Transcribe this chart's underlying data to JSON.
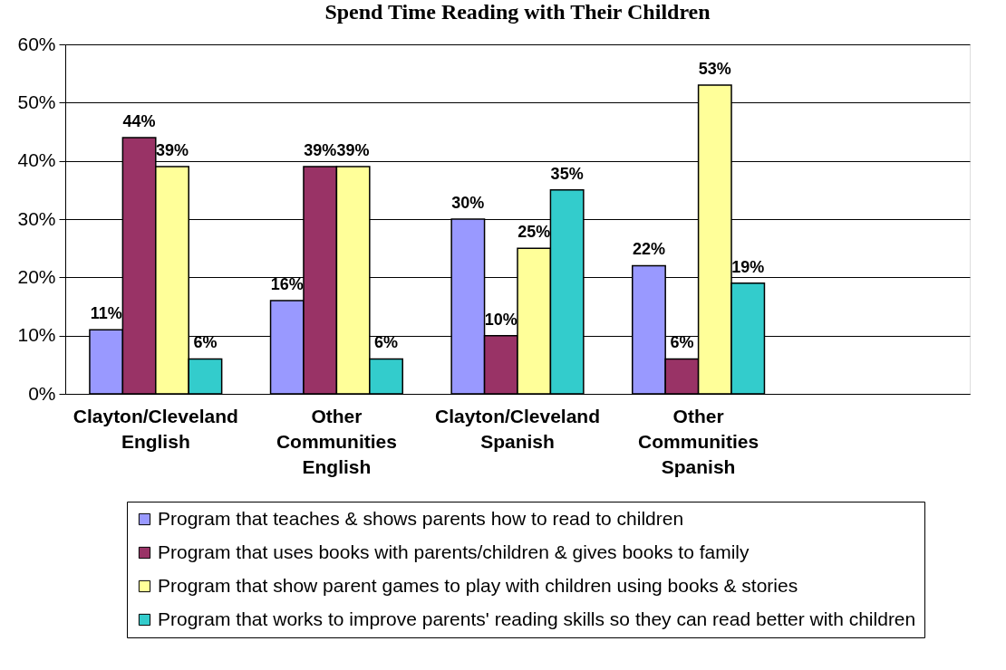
{
  "chart_data": {
    "type": "bar",
    "title": "Spend Time Reading with Their Children",
    "categories": [
      "Clayton/Cleveland English",
      "Other Communities English",
      "Clayton/Cleveland Spanish",
      "Other Communities Spanish",
      null
    ],
    "series": [
      {
        "name": "Program that teaches & shows parents how to read to children",
        "color": "#9999ff",
        "values": [
          11,
          16,
          30,
          22,
          null
        ],
        "value_labels": [
          "11%",
          "16%",
          "30%",
          "22%",
          null
        ]
      },
      {
        "name": "Program that uses books with parents/children & gives books to family",
        "color": "#993366",
        "values": [
          44,
          39,
          10,
          6,
          null
        ],
        "value_labels": [
          "44%",
          "39%",
          "10%",
          "6%",
          null
        ]
      },
      {
        "name": "Program that show parent games to play with children using books & stories",
        "color": "#ffff99",
        "values": [
          39,
          39,
          25,
          53,
          null
        ],
        "value_labels": [
          "39%",
          "39%",
          "25%",
          "53%",
          null
        ]
      },
      {
        "name": "Program that works to improve parents' reading skills so they can read better with children",
        "color": "#33cccc",
        "values": [
          6,
          6,
          35,
          19,
          null
        ],
        "value_labels": [
          "6%",
          "6%",
          "35%",
          "19%",
          null
        ]
      }
    ],
    "ylim": [
      0,
      60
    ],
    "yticks": [
      {
        "value": 0,
        "label": "0%"
      },
      {
        "value": 10,
        "label": "10%"
      },
      {
        "value": 20,
        "label": "20%"
      },
      {
        "value": 30,
        "label": "30%"
      },
      {
        "value": 40,
        "label": "40%"
      },
      {
        "value": 50,
        "label": "50%"
      },
      {
        "value": 60,
        "label": "60%"
      }
    ],
    "grid": "y",
    "legend": "bottom"
  }
}
